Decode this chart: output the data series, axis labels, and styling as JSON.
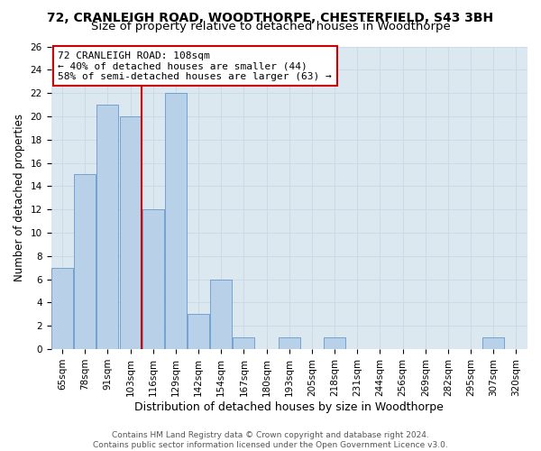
{
  "title_line1": "72, CRANLEIGH ROAD, WOODTHORPE, CHESTERFIELD, S43 3BH",
  "title_line2": "Size of property relative to detached houses in Woodthorpe",
  "xlabel": "Distribution of detached houses by size in Woodthorpe",
  "ylabel": "Number of detached properties",
  "categories": [
    "65sqm",
    "78sqm",
    "91sqm",
    "103sqm",
    "116sqm",
    "129sqm",
    "142sqm",
    "154sqm",
    "167sqm",
    "180sqm",
    "193sqm",
    "205sqm",
    "218sqm",
    "231sqm",
    "244sqm",
    "256sqm",
    "269sqm",
    "282sqm",
    "295sqm",
    "307sqm",
    "320sqm"
  ],
  "bar_heights": [
    7,
    15,
    21,
    20,
    12,
    22,
    3,
    6,
    1,
    0,
    1,
    0,
    1,
    0,
    0,
    0,
    0,
    0,
    0,
    1,
    0
  ],
  "bar_color": "#b8d0e8",
  "bar_edge_color": "#6699cc",
  "vline_color": "#cc0000",
  "vline_x": 3.5,
  "annotation_text": "72 CRANLEIGH ROAD: 108sqm\n← 40% of detached houses are smaller (44)\n58% of semi-detached houses are larger (63) →",
  "annotation_box_color": "#ffffff",
  "annotation_box_edge": "#cc0000",
  "ylim": [
    0,
    26
  ],
  "yticks": [
    0,
    2,
    4,
    6,
    8,
    10,
    12,
    14,
    16,
    18,
    20,
    22,
    24,
    26
  ],
  "grid_color": "#c8d8e8",
  "background_color": "#dce8f0",
  "footer_text": "Contains HM Land Registry data © Crown copyright and database right 2024.\nContains public sector information licensed under the Open Government Licence v3.0.",
  "title1_fontsize": 10,
  "title2_fontsize": 9.5,
  "xlabel_fontsize": 9,
  "ylabel_fontsize": 8.5,
  "tick_fontsize": 7.5,
  "annotation_fontsize": 8,
  "footer_fontsize": 6.5
}
